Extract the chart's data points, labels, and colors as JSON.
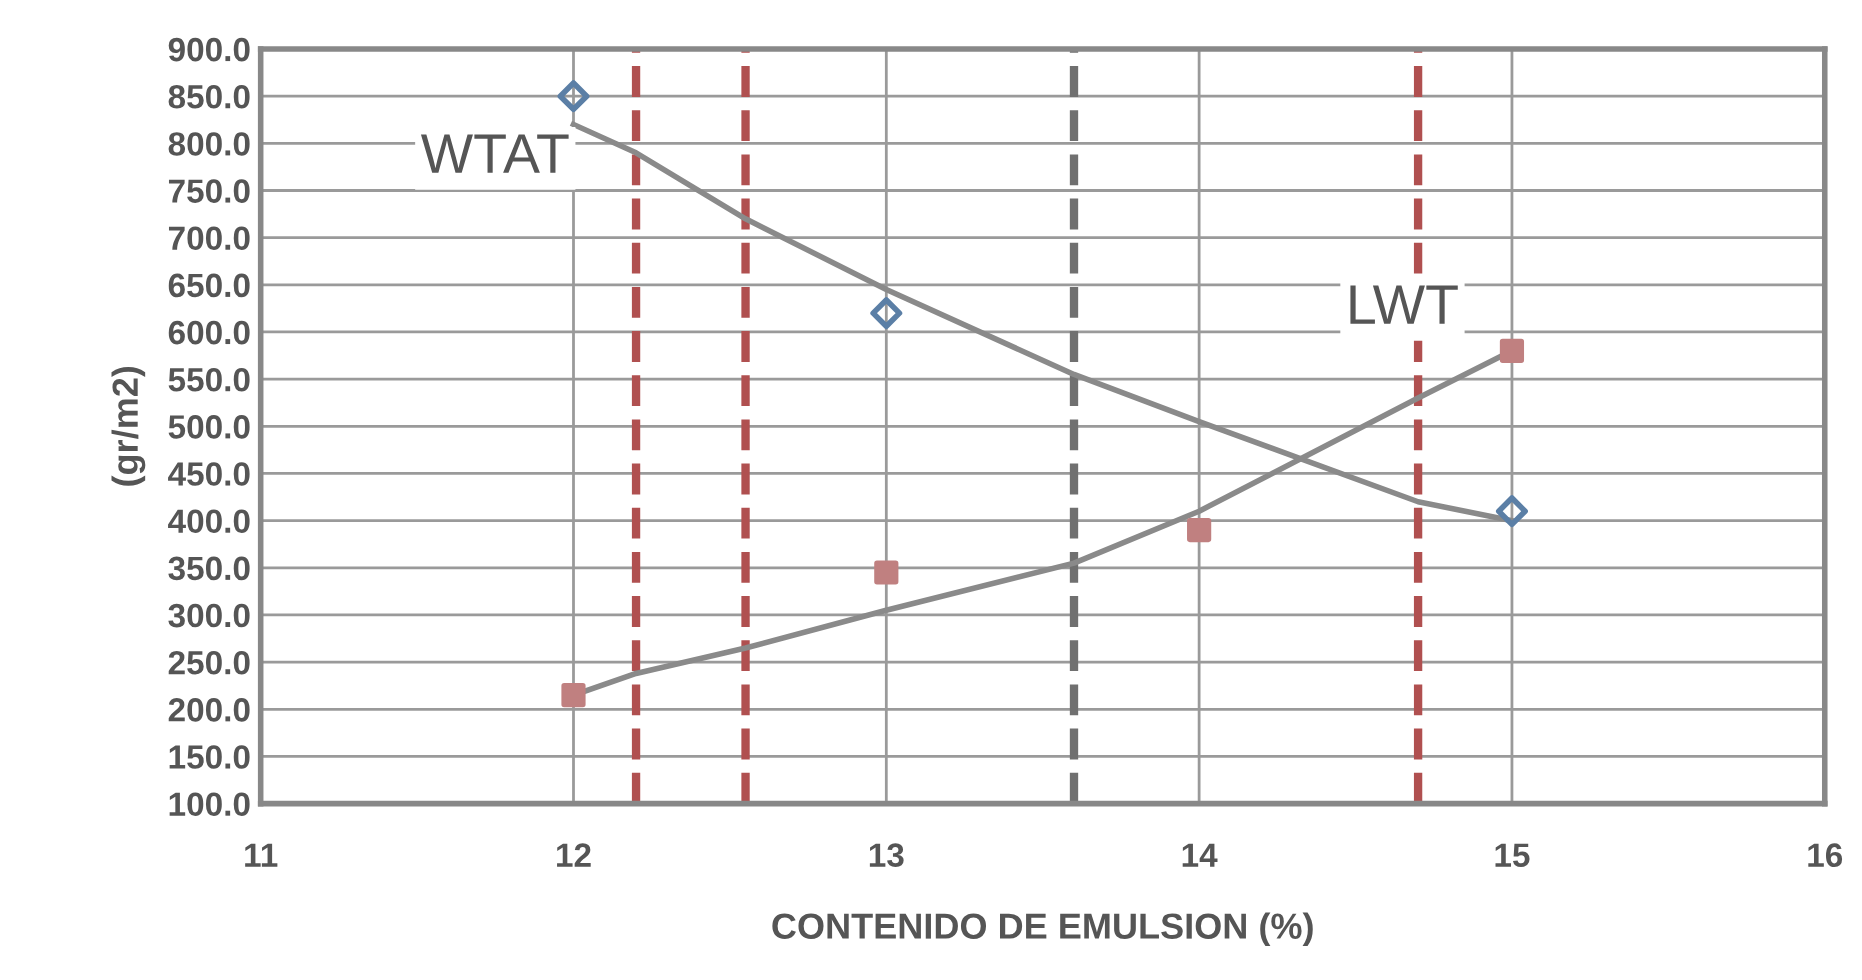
{
  "chart_data": {
    "type": "scatter",
    "xlabel": "CONTENIDO DE EMULSION (%)",
    "ylabel": "(gr/m2)",
    "xlim": [
      11,
      16
    ],
    "xticks": [
      11,
      12,
      13,
      14,
      15,
      16
    ],
    "ylim": [
      100,
      900
    ],
    "yticks": [
      {
        "value": 100,
        "label": "100.0"
      },
      {
        "value": 150,
        "label": "150.0"
      },
      {
        "value": 200,
        "label": "200.0"
      },
      {
        "value": 250,
        "label": "250.0"
      },
      {
        "value": 300,
        "label": "300.0"
      },
      {
        "value": 350,
        "label": "350.0"
      },
      {
        "value": 400,
        "label": "400.0"
      },
      {
        "value": 450,
        "label": "450.0"
      },
      {
        "value": 500,
        "label": "500.0"
      },
      {
        "value": 550,
        "label": "550.0"
      },
      {
        "value": 600,
        "label": "600.0"
      },
      {
        "value": 650,
        "label": "650.0"
      },
      {
        "value": 700,
        "label": "700.0"
      },
      {
        "value": 750,
        "label": "750.0"
      },
      {
        "value": 800,
        "label": "800.0"
      },
      {
        "value": 850,
        "label": "850.0"
      },
      {
        "value": 900,
        "label": "900.0"
      }
    ],
    "grid": true,
    "series": [
      {
        "type": "line",
        "color": "#8a8a8a",
        "marker": "none",
        "x": [
          12,
          12.2,
          12.55,
          13,
          13.6,
          14,
          14.7,
          15
        ],
        "values": [
          820,
          790,
          720,
          645,
          555,
          505,
          420,
          400
        ]
      },
      {
        "type": "line",
        "color": "#8a8a8a",
        "marker": "none",
        "x": [
          12,
          12.2,
          12.55,
          13,
          13.6,
          14,
          14.7,
          15
        ],
        "values": [
          215,
          238,
          265,
          305,
          355,
          410,
          530,
          580
        ]
      },
      {
        "color": "#5b7fa6",
        "marker": "diamond",
        "x": [
          12,
          13,
          15
        ],
        "values": [
          850,
          620,
          410
        ]
      },
      {
        "color": "#c08080",
        "marker": "square",
        "x": [
          12,
          13,
          14,
          15
        ],
        "values": [
          215,
          345,
          390,
          580
        ]
      }
    ],
    "ref_lines": [
      {
        "axis": "x",
        "value": 12.2,
        "color": "#b05050",
        "line_style": "dashed"
      },
      {
        "axis": "x",
        "value": 12.55,
        "color": "#b05050",
        "line_style": "dashed"
      },
      {
        "axis": "x",
        "value": 13.6,
        "color": "#707070",
        "line_style": "dashed"
      },
      {
        "axis": "x",
        "value": 14.7,
        "color": "#b05050",
        "line_style": "dashed"
      }
    ],
    "annotations": [
      "WTAT",
      "LWT"
    ]
  }
}
